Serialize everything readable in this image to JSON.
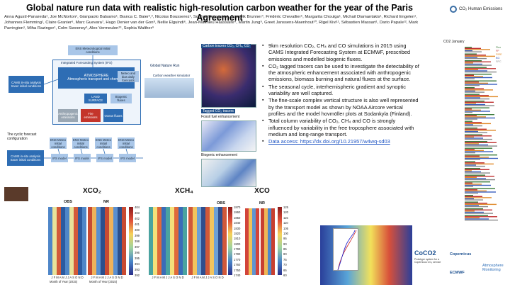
{
  "header": {
    "title": "Global nature run data with realistic high-resolution carbon weather for the year of the Paris Agreement",
    "authors": "Anna Agustí-Panareda¹, Joe McNorton¹, Gianpaolo Balsamo¹, Bianca C. Baier²,³, Nicolas Bousserez¹, Souhail Boussetta¹, Dominik Brunner⁴, Frédéric Chevallier⁵, Margarita Choulga¹, Michail Diamantakis¹, Richard Engelen¹, Johannes Flemming¹, Claire Granier⁶, Marc Guevara⁷, Hugo Denier van der Gon⁸, Nellie Elguindi⁶, Jean-Matthieu Haussaire⁴, Martin Jung⁹, Greet Janssens-Maenhout¹⁰, Rigel Kivi¹¹, Sébastien Massart¹, Dario Papale¹², Mark Parrington¹, Miha Razinger¹, Colm Sweeney³, Alex Vermeulen¹³, Sophia Walther⁹",
    "logo_text": "CO₂ Human Emissions"
  },
  "flowchart": {
    "ifs_title": "Integrated Forecasting System (IFS)",
    "atmosphere": "ATMOSPHERE\nAtmospheric transport and chemistry",
    "cams_top": "CAMS in-situ analysis tracer initial conditions",
    "ens_met": "ENS Meteorological initial conditions",
    "land": "LAND SURFACE",
    "biogenic": "Biogenic fluxes",
    "anthro": "Anthropogenic emissions",
    "fire": "Fire emissions",
    "ocean": "Ocean fluxes",
    "meteo_fluxes": "Meteo and bias daily forecasts",
    "global_nature_run": "Global Nature Run",
    "carbon_sim": "Carbon weather simulator",
    "cyclic_title": "The cyclic forecast configuration",
    "cams_bottom": "CAMS in-situ analysis tracer initial conditions",
    "ifs_model": "IFS model",
    "ens_small": "ENS Meteo initial conditions"
  },
  "imagecol": {
    "cap1": "Carbon tracers CO₂, CH₄, CO",
    "cap2": "Tagged CO₂ tracers",
    "cap3": "Fossil fuel enhancement",
    "cap4": "Biogenic enhancement"
  },
  "bullets": [
    "9km resolution CO₂, CH₄ and CO simulations in 2015 using CAMS Integrated Forecasting System at ECMWF, prescribed emissions and modelled biogenic fluxes.",
    "CO₂ tagged tracers can be used to investigate the detectability of the atmospheric enhancement associated with anthropogenic emissions, biomass burning and natural fluxes at the surface.",
    "The seasonal cycle, interhemispheric gradient and synoptic variability are well captured.",
    "The fine-scale complex vertical structure is also well represented by the transport model as shown by NOAA Aircore vertical profiles and the model hovmöller plots at Sodankyla (Finland).",
    "Total column variability of CO₂, CH₄ and CO is strongly influenced by variability in the free troposphere associated with medium and long-range transport."
  ],
  "data_access": "Data access: https://dx.doi.org/10.21957/w4wq-sd03",
  "heatmaps": {
    "xco2": "XCO₂",
    "xch4": "XCH₄",
    "xco": "XCO",
    "obs": "OBS",
    "nr": "NR",
    "xlabel": "Month of Year (2015)",
    "months": "J F M A M J J A S O N D",
    "xco2_ticks": [
      "404",
      "403",
      "402",
      "401",
      "400",
      "399",
      "398",
      "397",
      "396",
      "395",
      "394",
      "393",
      "392"
    ],
    "xch4_ticks": [
      "1870",
      "1860",
      "1850",
      "1840",
      "1830",
      "1820",
      "1810",
      "1800",
      "1790",
      "1780",
      "1770",
      "1760",
      "1750",
      "1740"
    ],
    "xco_ticks": [
      "125",
      "120",
      "115",
      "110",
      "105",
      "100",
      "95",
      "90",
      "85",
      "80",
      "75",
      "70",
      "65",
      "60"
    ]
  },
  "barchart": {
    "title": "CO2 January",
    "legend": [
      "Flux",
      "FF",
      "FIRE",
      "BG",
      "SFC"
    ]
  },
  "footer": {
    "coco2": "CoCO2",
    "coco2_sub": "Prototype system for a Copernicus CO₂ service",
    "copernicus": "Copernicus",
    "ecmwf": "ECMWF",
    "atmos": "Atmosphere Monitoring"
  },
  "colors": {
    "title_blue": "#1f55c4",
    "flow_blue": "#2e6db4",
    "fire_red": "#c4352b"
  }
}
